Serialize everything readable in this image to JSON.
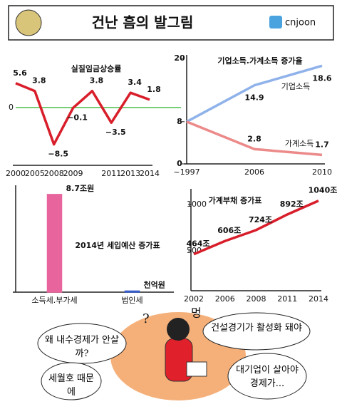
{
  "header": {
    "title": "건난 흠의 발그림",
    "handle": "cnjoon"
  },
  "chart_data": [
    {
      "type": "line",
      "title": "실질임금상승률",
      "categories": [
        "2000",
        "2005",
        "2008",
        "2009",
        null,
        "2011",
        "2013",
        "2014"
      ],
      "values": [
        5.6,
        3.8,
        -8.5,
        -0.1,
        3.8,
        -3.5,
        3.4,
        1.8
      ],
      "value_labels": [
        "5.6",
        "3.8",
        "−8.5",
        "−0.1",
        "3.8",
        "−3.5",
        "3.4",
        "1.8"
      ],
      "color": "#d81e2a",
      "ylim": [
        -13,
        10
      ],
      "yticks": [
        0
      ],
      "grid_color": "#2fb52f"
    },
    {
      "type": "line",
      "title": "기업소득.가계소득 증가율",
      "categories": [
        "~1997",
        "2006",
        "2010"
      ],
      "series": [
        {
          "name": "기업소득",
          "color": "#8fb2ea",
          "values": [
            8,
            14.9,
            18.6
          ]
        },
        {
          "name": "가계소득",
          "color": "#ec8a8a",
          "values": [
            8,
            2.8,
            1.7
          ]
        }
      ],
      "ylim": [
        0,
        20
      ],
      "yticks": [
        0,
        8,
        20
      ]
    },
    {
      "type": "bar",
      "title": "2014년 세입예산 증가표",
      "categories": [
        "소득세.부가세",
        "법인세"
      ],
      "values": [
        8.7,
        0.1
      ],
      "value_labels": [
        "8.7조원",
        "천억원"
      ],
      "colors": [
        "#e8649c",
        "#2f56c9"
      ],
      "ylim": [
        0,
        9.2
      ]
    },
    {
      "type": "line",
      "title": "가계부채 증가표",
      "categories": [
        "2002",
        "2006",
        "2008",
        "2011",
        "2014"
      ],
      "values": [
        464,
        606,
        724,
        892,
        1040
      ],
      "value_labels": [
        "464조",
        "606조",
        "724조",
        "892조",
        "1040조"
      ],
      "color": "#d81e2a",
      "ylim": [
        70,
        1130
      ],
      "yticks": [
        500,
        1000
      ]
    }
  ],
  "cartoon": {
    "q": "?",
    "sound": "멍",
    "bubble1": "왜 내수경제가 안살까?",
    "bubble2": "세월호 때문에",
    "bubble3": "건설경기가 활성화 돼야",
    "bubble4": "대기업이 살아야 경제가..."
  }
}
